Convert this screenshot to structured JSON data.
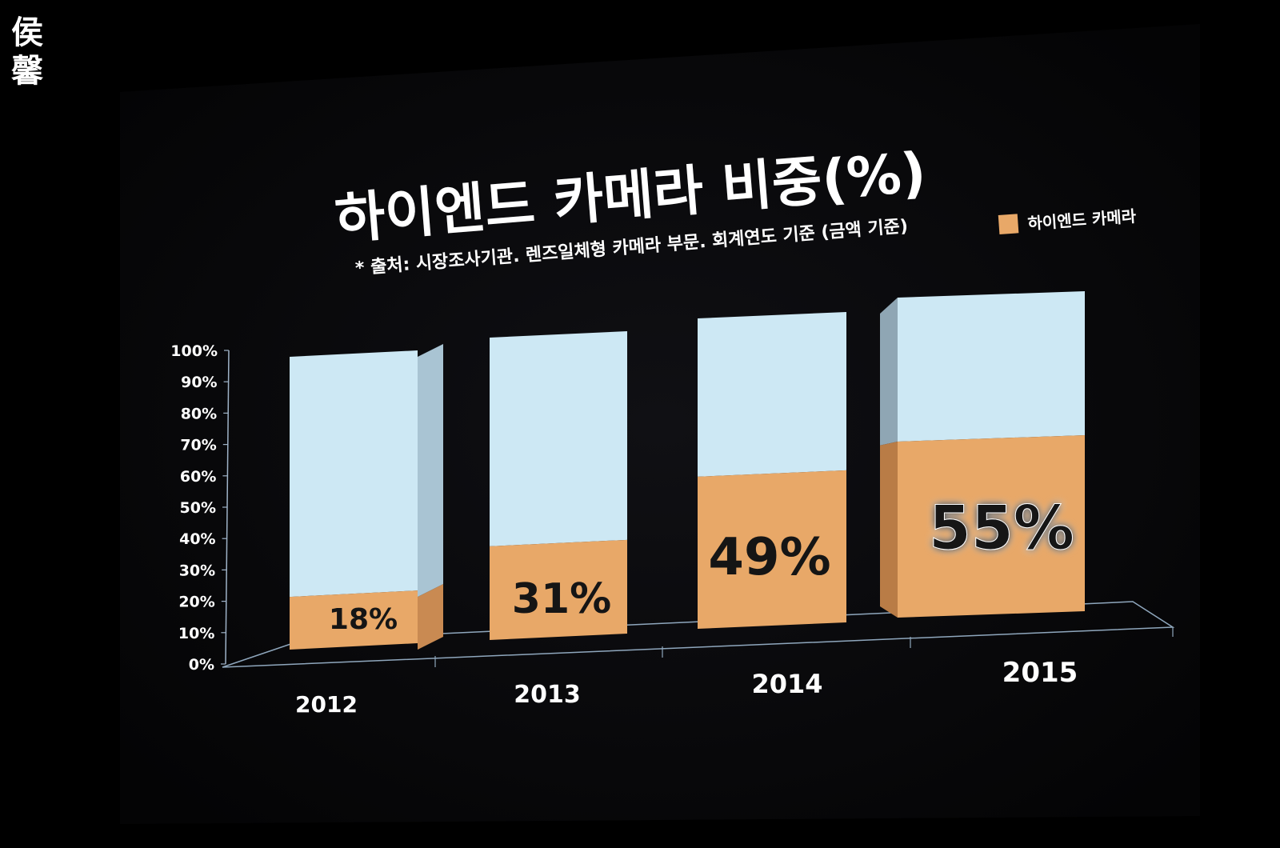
{
  "watermark": {
    "text": "侯馨"
  },
  "chart_data": {
    "type": "bar",
    "title": "하이엔드 카메라 비중(%)",
    "subtitle": "* 출처: 시장조사기관. 렌즈일체형 카메라 부문. 회계연도 기준 (금액 기준)",
    "legend": {
      "position": "top-right",
      "label": "하이엔드 카메라"
    },
    "categories": [
      "2012",
      "2013",
      "2014",
      "2015"
    ],
    "series": [
      {
        "name": "하이엔드 카메라",
        "values": [
          18,
          31,
          49,
          55
        ],
        "labels": [
          "18%",
          "31%",
          "49%",
          "55%"
        ]
      }
    ],
    "y_ticks": [
      "0%",
      "10%",
      "20%",
      "30%",
      "40%",
      "50%",
      "60%",
      "70%",
      "80%",
      "90%",
      "100%"
    ],
    "ylim": [
      0,
      100
    ],
    "stacked_total": 100,
    "grid": false,
    "colors": {
      "series": "#e8a868",
      "remainder": "#cde8f4",
      "background": "#07070a",
      "text": "#ffffff"
    }
  }
}
